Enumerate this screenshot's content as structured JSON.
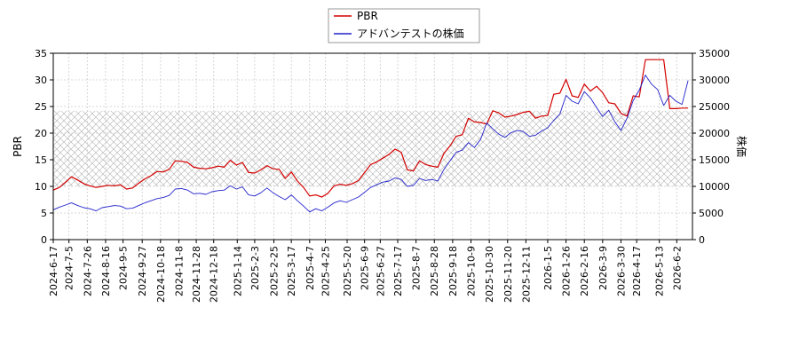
{
  "chart_data": {
    "type": "line",
    "title": "",
    "legend": {
      "placement": "top-center",
      "entries": [
        {
          "name": "PBR",
          "color": "#d40000"
        },
        {
          "name": "アドバンテストの株価",
          "color": "#2222cc"
        }
      ]
    },
    "y_left": {
      "label": "PBR",
      "range": [
        0,
        35
      ],
      "ticks": [
        0,
        5,
        10,
        15,
        20,
        25,
        30,
        35
      ]
    },
    "y_right": {
      "label": "株価",
      "range": [
        0,
        35000
      ],
      "ticks": [
        0,
        5000,
        10000,
        15000,
        20000,
        25000,
        30000,
        35000
      ]
    },
    "x_range": [
      "2024-06-17",
      "2026-06-20"
    ],
    "x_ticks": [
      "2024-6-17",
      "2024-7-5",
      "2024-7-26",
      "2024-8-16",
      "2024-9-5",
      "2024-9-27",
      "2024-10-18",
      "2024-11-8",
      "2024-11-28",
      "2024-12-18",
      "2025-1-14",
      "2025-2-3",
      "2025-2-25",
      "2025-3-17",
      "2025-4-7",
      "2025-4-25",
      "2025-5-20",
      "2025-6-9",
      "2025-6-27",
      "2025-7-17",
      "2025-8-7",
      "2025-8-28",
      "2025-9-18",
      "2025-10-9",
      "2025-10-30",
      "2025-11-20",
      "2025-12-11",
      "2026-1-5",
      "2026-1-26",
      "2026-2-16",
      "2026-3-9",
      "2026-3-30",
      "2026-4-17",
      "2026-5-13",
      "2026-6-2"
    ],
    "grid": true,
    "band": {
      "y_left_range": [
        10,
        24.2
      ],
      "pattern": "cross-hatch"
    },
    "series": [
      {
        "name": "PBR",
        "axis": "left",
        "color": "#d40000",
        "points": [
          [
            "2024-06-17",
            9.3
          ],
          [
            "2024-06-24",
            9.8
          ],
          [
            "2024-07-01",
            10.8
          ],
          [
            "2024-07-08",
            11.8
          ],
          [
            "2024-07-15",
            11.2
          ],
          [
            "2024-07-22",
            10.5
          ],
          [
            "2024-07-29",
            10.1
          ],
          [
            "2024-08-05",
            9.8
          ],
          [
            "2024-08-12",
            10.0
          ],
          [
            "2024-08-19",
            10.2
          ],
          [
            "2024-08-26",
            10.1
          ],
          [
            "2024-09-02",
            10.3
          ],
          [
            "2024-09-09",
            9.5
          ],
          [
            "2024-09-16",
            9.7
          ],
          [
            "2024-09-23",
            10.6
          ],
          [
            "2024-09-30",
            11.4
          ],
          [
            "2024-10-07",
            12.0
          ],
          [
            "2024-10-14",
            12.8
          ],
          [
            "2024-10-21",
            12.7
          ],
          [
            "2024-10-28",
            13.2
          ],
          [
            "2024-11-04",
            14.8
          ],
          [
            "2024-11-11",
            14.7
          ],
          [
            "2024-11-18",
            14.5
          ],
          [
            "2024-11-25",
            13.6
          ],
          [
            "2024-12-02",
            13.4
          ],
          [
            "2024-12-09",
            13.3
          ],
          [
            "2024-12-16",
            13.5
          ],
          [
            "2024-12-23",
            13.8
          ],
          [
            "2024-12-30",
            13.6
          ],
          [
            "2025-01-06",
            14.9
          ],
          [
            "2025-01-13",
            14.0
          ],
          [
            "2025-01-20",
            14.5
          ],
          [
            "2025-01-27",
            12.6
          ],
          [
            "2025-02-03",
            12.5
          ],
          [
            "2025-02-10",
            13.1
          ],
          [
            "2025-02-17",
            13.9
          ],
          [
            "2025-02-24",
            13.3
          ],
          [
            "2025-03-03",
            13.2
          ],
          [
            "2025-03-10",
            11.5
          ],
          [
            "2025-03-17",
            12.7
          ],
          [
            "2025-03-24",
            11.0
          ],
          [
            "2025-03-31",
            9.8
          ],
          [
            "2025-04-07",
            8.2
          ],
          [
            "2025-04-14",
            8.4
          ],
          [
            "2025-04-21",
            8.0
          ],
          [
            "2025-04-28",
            8.7
          ],
          [
            "2025-05-05",
            10.1
          ],
          [
            "2025-05-12",
            10.4
          ],
          [
            "2025-05-19",
            10.2
          ],
          [
            "2025-05-26",
            10.5
          ],
          [
            "2025-06-02",
            11.1
          ],
          [
            "2025-06-09",
            12.6
          ],
          [
            "2025-06-16",
            14.1
          ],
          [
            "2025-06-23",
            14.6
          ],
          [
            "2025-06-30",
            15.3
          ],
          [
            "2025-07-07",
            16.0
          ],
          [
            "2025-07-14",
            17.0
          ],
          [
            "2025-07-21",
            16.4
          ],
          [
            "2025-07-28",
            13.1
          ],
          [
            "2025-08-04",
            12.9
          ],
          [
            "2025-08-11",
            14.8
          ],
          [
            "2025-08-18",
            14.1
          ],
          [
            "2025-08-25",
            13.8
          ],
          [
            "2025-09-01",
            13.6
          ],
          [
            "2025-09-08",
            16.2
          ],
          [
            "2025-09-15",
            17.6
          ],
          [
            "2025-09-22",
            19.4
          ],
          [
            "2025-09-29",
            19.7
          ],
          [
            "2025-10-06",
            22.8
          ],
          [
            "2025-10-13",
            22.1
          ],
          [
            "2025-10-20",
            22.0
          ],
          [
            "2025-10-27",
            21.7
          ],
          [
            "2025-11-03",
            24.2
          ],
          [
            "2025-11-10",
            23.8
          ],
          [
            "2025-11-17",
            23.0
          ],
          [
            "2025-11-24",
            23.2
          ],
          [
            "2025-12-01",
            23.5
          ],
          [
            "2025-12-08",
            23.9
          ],
          [
            "2025-12-15",
            24.1
          ],
          [
            "2025-12-22",
            22.8
          ],
          [
            "2025-12-29",
            23.2
          ],
          [
            "2026-01-05",
            23.3
          ],
          [
            "2026-01-12",
            27.3
          ],
          [
            "2026-01-19",
            27.5
          ],
          [
            "2026-01-26",
            30.1
          ],
          [
            "2026-02-02",
            27.0
          ],
          [
            "2026-02-09",
            26.7
          ],
          [
            "2026-02-16",
            29.2
          ],
          [
            "2026-02-23",
            27.9
          ],
          [
            "2026-03-02",
            28.8
          ],
          [
            "2026-03-09",
            27.6
          ],
          [
            "2026-03-16",
            25.7
          ],
          [
            "2026-03-23",
            25.5
          ],
          [
            "2026-03-30",
            23.7
          ],
          [
            "2026-04-06",
            23.2
          ],
          [
            "2026-04-13",
            27.0
          ],
          [
            "2026-04-20",
            26.8
          ],
          [
            "2026-04-27",
            33.8
          ],
          [
            "2026-05-04",
            33.8
          ],
          [
            "2026-05-11",
            33.8
          ],
          [
            "2026-05-18",
            33.8
          ],
          [
            "2026-05-25",
            24.6
          ],
          [
            "2026-06-01",
            24.6
          ],
          [
            "2026-06-08",
            24.7
          ],
          [
            "2026-06-15",
            24.7
          ]
        ]
      },
      {
        "name": "アドバンテストの株価",
        "axis": "right",
        "color": "#2222cc",
        "points": [
          [
            "2024-06-17",
            5600
          ],
          [
            "2024-06-24",
            6100
          ],
          [
            "2024-07-01",
            6500
          ],
          [
            "2024-07-08",
            6900
          ],
          [
            "2024-07-15",
            6400
          ],
          [
            "2024-07-22",
            6000
          ],
          [
            "2024-07-29",
            5800
          ],
          [
            "2024-08-05",
            5400
          ],
          [
            "2024-08-12",
            6000
          ],
          [
            "2024-08-19",
            6200
          ],
          [
            "2024-08-26",
            6400
          ],
          [
            "2024-09-02",
            6300
          ],
          [
            "2024-09-09",
            5800
          ],
          [
            "2024-09-16",
            5900
          ],
          [
            "2024-09-23",
            6400
          ],
          [
            "2024-09-30",
            6900
          ],
          [
            "2024-10-07",
            7300
          ],
          [
            "2024-10-14",
            7700
          ],
          [
            "2024-10-21",
            7900
          ],
          [
            "2024-10-28",
            8300
          ],
          [
            "2024-11-04",
            9500
          ],
          [
            "2024-11-11",
            9600
          ],
          [
            "2024-11-18",
            9300
          ],
          [
            "2024-11-25",
            8600
          ],
          [
            "2024-12-02",
            8700
          ],
          [
            "2024-12-09",
            8500
          ],
          [
            "2024-12-16",
            9000
          ],
          [
            "2024-12-23",
            9200
          ],
          [
            "2024-12-30",
            9300
          ],
          [
            "2025-01-06",
            10100
          ],
          [
            "2025-01-13",
            9500
          ],
          [
            "2025-01-20",
            9900
          ],
          [
            "2025-01-27",
            8400
          ],
          [
            "2025-02-03",
            8200
          ],
          [
            "2025-02-10",
            8800
          ],
          [
            "2025-02-17",
            9700
          ],
          [
            "2025-02-24",
            8800
          ],
          [
            "2025-03-03",
            8100
          ],
          [
            "2025-03-10",
            7500
          ],
          [
            "2025-03-17",
            8400
          ],
          [
            "2025-03-24",
            7300
          ],
          [
            "2025-03-31",
            6300
          ],
          [
            "2025-04-07",
            5200
          ],
          [
            "2025-04-14",
            5800
          ],
          [
            "2025-04-21",
            5400
          ],
          [
            "2025-04-28",
            6100
          ],
          [
            "2025-05-05",
            6900
          ],
          [
            "2025-05-12",
            7300
          ],
          [
            "2025-05-19",
            7000
          ],
          [
            "2025-05-26",
            7500
          ],
          [
            "2025-06-02",
            8000
          ],
          [
            "2025-06-09",
            8900
          ],
          [
            "2025-06-16",
            9800
          ],
          [
            "2025-06-23",
            10300
          ],
          [
            "2025-06-30",
            10800
          ],
          [
            "2025-07-07",
            11000
          ],
          [
            "2025-07-14",
            11600
          ],
          [
            "2025-07-21",
            11300
          ],
          [
            "2025-07-28",
            10000
          ],
          [
            "2025-08-04",
            10200
          ],
          [
            "2025-08-11",
            11500
          ],
          [
            "2025-08-18",
            11100
          ],
          [
            "2025-08-25",
            11300
          ],
          [
            "2025-09-01",
            11000
          ],
          [
            "2025-09-08",
            13200
          ],
          [
            "2025-09-15",
            14800
          ],
          [
            "2025-09-22",
            16400
          ],
          [
            "2025-09-29",
            16800
          ],
          [
            "2025-10-06",
            18200
          ],
          [
            "2025-10-13",
            17300
          ],
          [
            "2025-10-20",
            18800
          ],
          [
            "2025-10-27",
            21900
          ],
          [
            "2025-11-03",
            20800
          ],
          [
            "2025-11-10",
            19800
          ],
          [
            "2025-11-17",
            19200
          ],
          [
            "2025-11-24",
            20100
          ],
          [
            "2025-12-01",
            20500
          ],
          [
            "2025-12-08",
            20300
          ],
          [
            "2025-12-15",
            19400
          ],
          [
            "2025-12-22",
            19600
          ],
          [
            "2025-12-29",
            20400
          ],
          [
            "2026-01-05",
            21000
          ],
          [
            "2026-01-12",
            22400
          ],
          [
            "2026-01-19",
            23600
          ],
          [
            "2026-01-26",
            27100
          ],
          [
            "2026-02-02",
            26000
          ],
          [
            "2026-02-09",
            25500
          ],
          [
            "2026-02-16",
            27800
          ],
          [
            "2026-02-23",
            26600
          ],
          [
            "2026-03-02",
            24800
          ],
          [
            "2026-03-09",
            23100
          ],
          [
            "2026-03-16",
            24300
          ],
          [
            "2026-03-23",
            22100
          ],
          [
            "2026-03-30",
            20500
          ],
          [
            "2026-04-06",
            22800
          ],
          [
            "2026-04-13",
            26100
          ],
          [
            "2026-04-20",
            28100
          ],
          [
            "2026-04-27",
            30900
          ],
          [
            "2026-05-04",
            29200
          ],
          [
            "2026-05-11",
            28200
          ],
          [
            "2026-05-18",
            25200
          ],
          [
            "2026-05-25",
            27100
          ],
          [
            "2026-06-01",
            26000
          ],
          [
            "2026-06-08",
            25400
          ],
          [
            "2026-06-15",
            29900
          ]
        ]
      }
    ]
  }
}
